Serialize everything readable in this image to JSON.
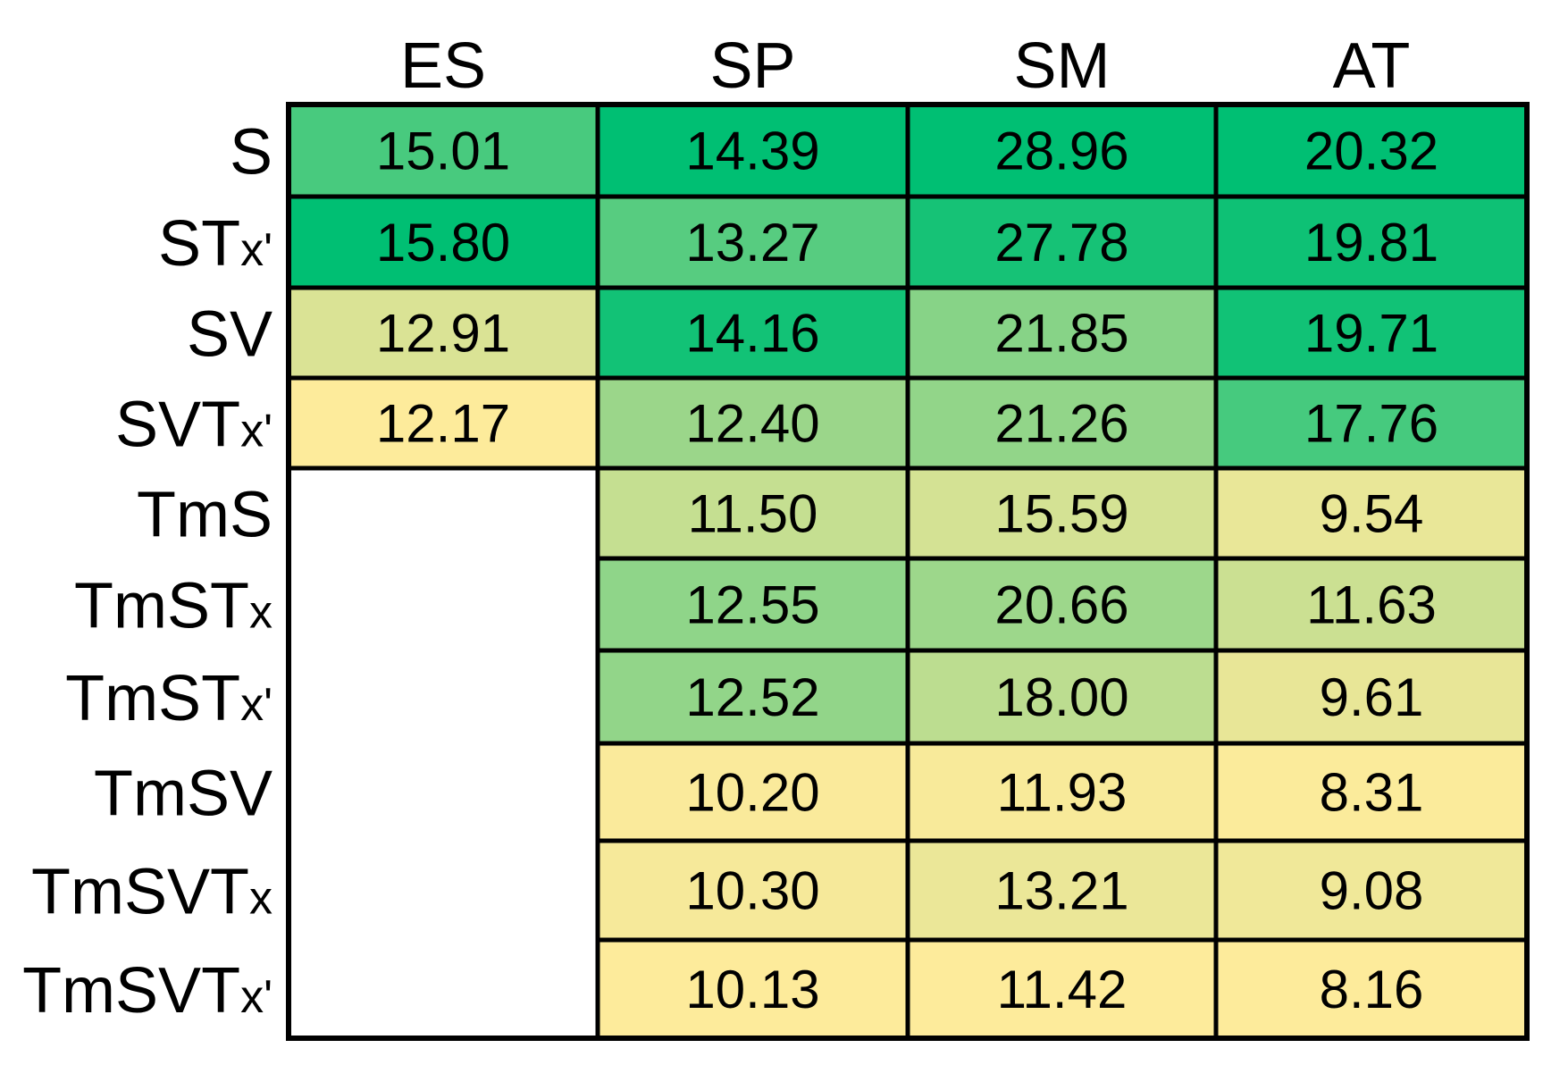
{
  "chart_data": {
    "type": "heatmap",
    "columns": [
      "ES",
      "SP",
      "SM",
      "AT"
    ],
    "rows": [
      {
        "main": "S",
        "sub": ""
      },
      {
        "main": "ST",
        "sub": "x'"
      },
      {
        "main": "SV",
        "sub": ""
      },
      {
        "main": "SVT",
        "sub": "x'"
      },
      {
        "main": "TmS",
        "sub": ""
      },
      {
        "main": "TmST",
        "sub": "x"
      },
      {
        "main": "TmST",
        "sub": "x'"
      },
      {
        "main": "TmSV",
        "sub": ""
      },
      {
        "main": "TmSVT",
        "sub": "x"
      },
      {
        "main": "TmSVT",
        "sub": "x'"
      }
    ],
    "values": [
      [
        "15.01",
        "14.39",
        "28.96",
        "20.32"
      ],
      [
        "15.80",
        "13.27",
        "27.78",
        "19.81"
      ],
      [
        "12.91",
        "14.16",
        "21.85",
        "19.71"
      ],
      [
        "12.17",
        "12.40",
        "21.26",
        "17.76"
      ],
      [
        null,
        "11.50",
        "15.59",
        "9.54"
      ],
      [
        null,
        "12.55",
        "20.66",
        "11.63"
      ],
      [
        null,
        "12.52",
        "18.00",
        "9.61"
      ],
      [
        null,
        "10.20",
        "11.93",
        "8.31"
      ],
      [
        null,
        "10.30",
        "13.21",
        "9.08"
      ],
      [
        null,
        "10.13",
        "11.42",
        "8.16"
      ]
    ],
    "color_scale": {
      "low": "#fdeb9b",
      "mid": "#a6d88c",
      "high": "#00bf73",
      "empty": "#ffffff",
      "scaling": "per-column"
    },
    "grid": true,
    "legend": "none"
  }
}
